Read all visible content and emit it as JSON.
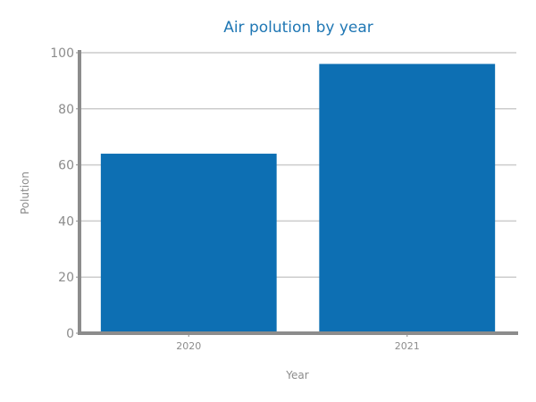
{
  "chart_data": {
    "type": "bar",
    "title": "Air polution by year",
    "xlabel": "Year",
    "ylabel": "Polution",
    "categories": [
      "2020",
      "2021"
    ],
    "values": [
      64,
      96
    ],
    "ylim": [
      0,
      100
    ],
    "yticks": [
      "0",
      "20",
      "40",
      "60",
      "80",
      "100"
    ],
    "grid": true,
    "legend": "none",
    "bar_color": "#0d6fb3"
  }
}
